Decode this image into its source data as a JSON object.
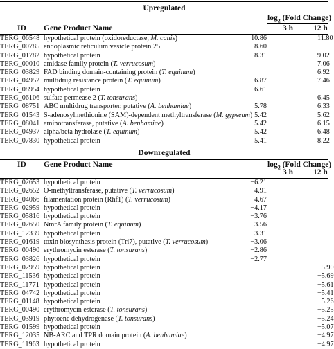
{
  "upregulated": {
    "title": "Upregulated",
    "headers": {
      "id": "ID",
      "name": "Gene Product Name",
      "fold_change": "log",
      "fold_change_sub": "2",
      "fold_change_rest": " (Fold Change)",
      "h3": "3 h",
      "h12": "12 h"
    },
    "rows": [
      {
        "id": "TERG_06548",
        "name": "hypothetical protein (oxidoreductase, ",
        "org": "M. canis",
        "close": ")",
        "v3": "10.86",
        "v12": "11.80"
      },
      {
        "id": "TERG_00785",
        "name": "endoplasmic reticulum vesicle protein 25",
        "org": "",
        "close": "",
        "v3": "8.60",
        "v12": ""
      },
      {
        "id": "TERG_01782",
        "name": "hypothetical protein",
        "org": "",
        "close": "",
        "v3": "8.31",
        "v12": "9.02"
      },
      {
        "id": "TERG_00010",
        "name": "amidase family protein (",
        "org": "T. verrucosum",
        "close": ")",
        "v3": "",
        "v12": "7.06"
      },
      {
        "id": "TERG_03829",
        "name": "FAD binding domain-containing protein (",
        "org": "T. equinum",
        "close": ")",
        "v3": "",
        "v12": "6.92"
      },
      {
        "id": "TERG_04952",
        "name": "multidrug resistance protein (",
        "org": "T. equinum",
        "close": ")",
        "v3": "6.87",
        "v12": "7.46"
      },
      {
        "id": "TERG_08954",
        "name": "hypothetical protein",
        "org": "",
        "close": "",
        "v3": "6.61",
        "v12": ""
      },
      {
        "id": "TERG_06106",
        "name": "sulfate permease 2 (",
        "org": "T. tonsurans",
        "close": ")",
        "v3": "",
        "v12": "6.45"
      },
      {
        "id": "TERG_08751",
        "name": "ABC multidrug transporter, putative (",
        "org": "A. benhamiae",
        "close": ")",
        "v3": "5.78",
        "v12": "6.33"
      },
      {
        "id": "TERG_01543",
        "name": "S-adenosylmethionine (SAM)-dependent methyltransferase (",
        "org": "M. gypseum",
        "close": ")",
        "v3": "5.42",
        "v12": "5.62"
      },
      {
        "id": "TERG_08041",
        "name": "aminotransferase, putative (",
        "org": "A. benhamiae",
        "close": ")",
        "v3": "5.42",
        "v12": "6.15"
      },
      {
        "id": "TERG_04937",
        "name": "alpha/beta hydrolase (",
        "org": "T. equinum",
        "close": ")",
        "v3": "5.42",
        "v12": "6.48"
      },
      {
        "id": "TERG_07830",
        "name": "hypothetical protein",
        "org": "",
        "close": "",
        "v3": "5.41",
        "v12": "8.22"
      }
    ]
  },
  "downregulated": {
    "title": "Downregulated",
    "headers": {
      "id": "ID",
      "name": "Gene Product Name",
      "fold_change": "log",
      "fold_change_sub": "2",
      "fold_change_rest": " (Fold Change)",
      "h3": "3 h",
      "h12": "12 h"
    },
    "rows": [
      {
        "id": "TERG_02653",
        "name": "hypothetical protein",
        "org": "",
        "close": "",
        "v3": "−6.21",
        "v12": ""
      },
      {
        "id": "TERG_02652",
        "name": "O-methyltransferase, putative (",
        "org": "T. verrucosum",
        "close": ")",
        "v3": "−4.91",
        "v12": ""
      },
      {
        "id": "TERG_04066",
        "name": "filamentation protein (Rhf1) (",
        "org": "T. verrucosum",
        "close": ")",
        "v3": "−4.67",
        "v12": ""
      },
      {
        "id": "TERG_02959",
        "name": "hypothetical protein",
        "org": "",
        "close": "",
        "v3": "−4.17",
        "v12": ""
      },
      {
        "id": "TERG_05816",
        "name": "hypothetical protein",
        "org": "",
        "close": "",
        "v3": "−3.76",
        "v12": ""
      },
      {
        "id": "TERG_02650",
        "name": "NmrA family protein (",
        "org": "T. equinum",
        "close": ")",
        "v3": "−3.56",
        "v12": ""
      },
      {
        "id": "TERG_12339",
        "name": "hypothetical protein",
        "org": "",
        "close": "",
        "v3": "−3.31",
        "v12": ""
      },
      {
        "id": "TERG_01619",
        "name": "toxin biosynthesis protein (Tri7), putative (",
        "org": "T. verrucosum",
        "close": ")",
        "v3": "−3.06",
        "v12": ""
      },
      {
        "id": "TERG_00490",
        "name": "erythromycin esterase (",
        "org": "T. tonsurans",
        "close": ")",
        "v3": "−2.86",
        "v12": ""
      },
      {
        "id": "TERG_03826",
        "name": "hypothetical protein",
        "org": "",
        "close": "",
        "v3": "−2.77",
        "v12": ""
      },
      {
        "id": "TERG_02959",
        "name": "hypothetical protein",
        "org": "",
        "close": "",
        "v3": "",
        "v12": "−5.90"
      },
      {
        "id": "TERG_11536",
        "name": "hypothetical protein",
        "org": "",
        "close": "",
        "v3": "",
        "v12": "−5.69"
      },
      {
        "id": "TERG_11771",
        "name": "hypothetical protein",
        "org": "",
        "close": "",
        "v3": "",
        "v12": "−5.61"
      },
      {
        "id": "TERG_04742",
        "name": "hypothetical protein",
        "org": "",
        "close": "",
        "v3": "",
        "v12": "−5.41"
      },
      {
        "id": "TERG_01148",
        "name": "hypothetical protein",
        "org": "",
        "close": "",
        "v3": "",
        "v12": "−5.26"
      },
      {
        "id": "TERG_00490",
        "name": "erythromycin esterase (",
        "org": "T. tonsurans",
        "close": ")",
        "v3": "",
        "v12": "−5.25"
      },
      {
        "id": "TERG_03919",
        "name": "phytoene dehydrogenase (",
        "org": "T. tonsurans",
        "close": ")",
        "v3": "",
        "v12": "−5.24"
      },
      {
        "id": "TERG_01599",
        "name": "hypothetical protein",
        "org": "",
        "close": "",
        "v3": "",
        "v12": "−5.07"
      },
      {
        "id": "TERG_12035",
        "name": "NB-ARC and TPR domain protein (",
        "org": "A. benhamiae",
        "close": ")",
        "v3": "",
        "v12": "−4.97"
      },
      {
        "id": "TERG_11963",
        "name": "hypothetical protein",
        "org": "",
        "close": "",
        "v3": "",
        "v12": "−4.97"
      }
    ]
  }
}
